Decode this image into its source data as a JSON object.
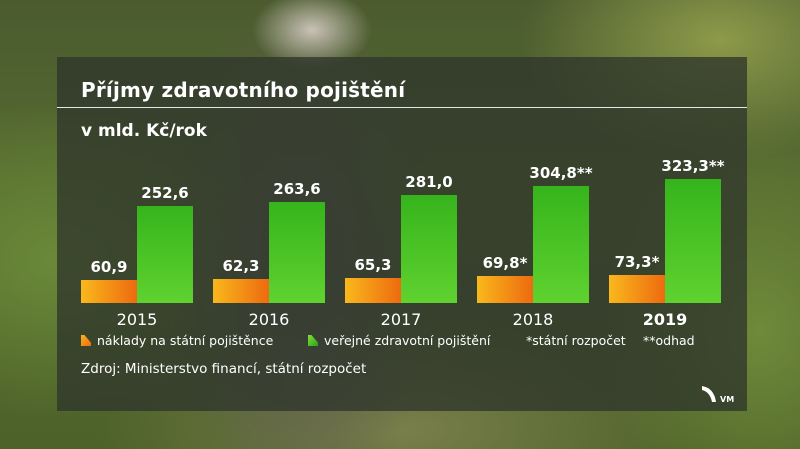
{
  "title": "Příjmy zdravotního pojištění",
  "subtitle": "v mld. Kč/rok",
  "colors": {
    "orange_light": "#f9b81c",
    "orange_dark": "#ee6a10",
    "green_light": "#7fe03a",
    "green_dark": "#2ca619",
    "panel": "#30362c",
    "text": "#ffffff"
  },
  "legend": {
    "series1": "náklady na státní pojištěnce",
    "series2": "veřejné zdravotní pojištění",
    "note1": "*státní rozpočet",
    "note2": "**odhad"
  },
  "source": "Zdroj: Ministerstvo financí, státní rozpočet",
  "logo_text": "VM",
  "chart_data": {
    "type": "bar",
    "categories": [
      "2015",
      "2016",
      "2017",
      "2018",
      "2019"
    ],
    "highlight_category": "2019",
    "series": [
      {
        "name": "náklady na státní pojištěnce",
        "values": [
          60.9,
          62.3,
          65.3,
          69.8,
          73.3
        ],
        "labels": [
          "60,9",
          "62,3",
          "65,3",
          "69,8*",
          "73,3*"
        ]
      },
      {
        "name": "veřejné zdravotní pojištění",
        "values": [
          252.6,
          263.6,
          281.0,
          304.8,
          323.3
        ],
        "labels": [
          "252,6",
          "263,6",
          "281,0",
          "304,8**",
          "323,3**"
        ]
      }
    ],
    "ylim": [
      0,
      323.3
    ],
    "grid": false,
    "legend_position": "bottom"
  }
}
